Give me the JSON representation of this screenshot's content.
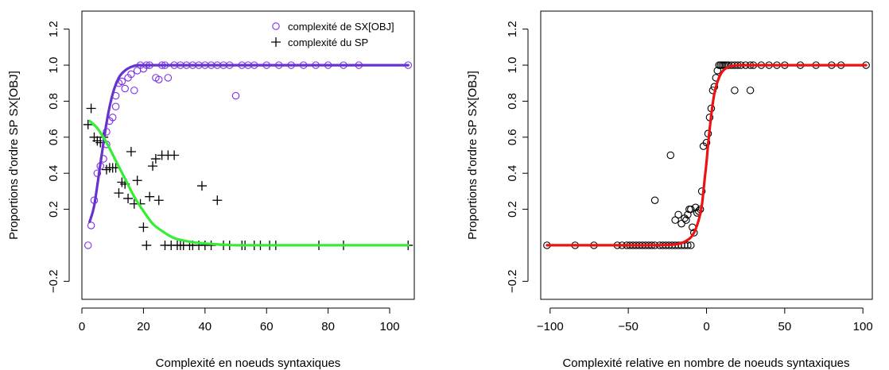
{
  "chart_data": [
    {
      "type": "scatter",
      "title": "",
      "xlabel": "Complexité en noeuds syntaxiques",
      "ylabel": "Proportions d'ordre SP SX[OBJ]",
      "xlim": [
        0,
        108
      ],
      "ylim": [
        -0.3,
        1.3
      ],
      "xticks": [
        0,
        20,
        40,
        60,
        80,
        100
      ],
      "yticks": [
        -0.2,
        0.2,
        0.4,
        0.6,
        0.8,
        1.0,
        1.2
      ],
      "ytick_labels": [
        "−0.2",
        "0.2",
        "0.4",
        "0.6",
        "0.8",
        "1.0",
        "1.2"
      ],
      "grid": false,
      "legend_position": "top-right",
      "legend": [
        "complexité de SX[OBJ]",
        "complexité du SP"
      ],
      "series": [
        {
          "name": "complexité de SX[OBJ]",
          "marker": "circle",
          "color": "#7b2fe8",
          "x": [
            2,
            3,
            4,
            5,
            6,
            7,
            8,
            8,
            9,
            10,
            11,
            11,
            12,
            13,
            14,
            15,
            16,
            17,
            18,
            19,
            20,
            21,
            22,
            24,
            25,
            26,
            27,
            28,
            30,
            32,
            34,
            36,
            38,
            40,
            42,
            44,
            46,
            48,
            50,
            52,
            54,
            56,
            60,
            64,
            68,
            72,
            76,
            80,
            85,
            90,
            106
          ],
          "y": [
            0.0,
            0.11,
            0.25,
            0.4,
            0.44,
            0.48,
            0.56,
            0.63,
            0.69,
            0.71,
            0.77,
            0.83,
            0.9,
            0.91,
            0.87,
            0.93,
            0.95,
            0.86,
            0.97,
            1.0,
            0.98,
            1.0,
            1.0,
            0.93,
            0.92,
            1.0,
            1.0,
            0.93,
            1.0,
            1.0,
            1.0,
            1.0,
            1.0,
            1.0,
            1.0,
            1.0,
            1.0,
            1.0,
            0.83,
            1.0,
            1.0,
            1.0,
            1.0,
            1.0,
            1.0,
            1.0,
            1.0,
            1.0,
            1.0,
            1.0,
            1.0
          ]
        },
        {
          "name": "complexité du SP",
          "marker": "plus",
          "color": "#000000",
          "x": [
            2,
            3,
            4,
            5,
            6,
            7,
            8,
            9,
            10,
            11,
            12,
            13,
            14,
            15,
            16,
            17,
            18,
            19,
            20,
            21,
            22,
            23,
            24,
            25,
            26,
            28,
            30,
            32,
            36,
            39,
            44,
            27,
            29,
            31,
            33,
            35,
            38,
            40,
            42,
            46,
            48,
            52,
            53,
            56,
            58,
            61,
            63,
            77,
            85,
            106
          ],
          "y": [
            0.67,
            0.76,
            0.6,
            0.58,
            0.57,
            0.6,
            0.42,
            0.43,
            0.43,
            0.43,
            0.29,
            0.35,
            0.34,
            0.26,
            0.52,
            0.23,
            0.36,
            0.23,
            0.1,
            0.0,
            0.27,
            0.44,
            0.48,
            0.25,
            0.5,
            0.5,
            0.5,
            0.0,
            0.0,
            0.33,
            0.25,
            0.0,
            0.0,
            0.0,
            0.0,
            0.0,
            0.0,
            0.0,
            0.0,
            0.0,
            0.0,
            0.0,
            0.0,
            0.0,
            0.0,
            0.0,
            0.0,
            0.0,
            0.0,
            0.0
          ]
        }
      ],
      "fitted_curves": [
        {
          "series": "complexité de SX[OBJ]",
          "color": "#6633cc",
          "model": "logistic",
          "x": [
            2.5,
            4,
            6,
            8,
            10,
            12,
            14,
            16,
            18,
            20,
            24,
            28,
            35,
            50,
            70,
            106
          ],
          "y": [
            0.13,
            0.22,
            0.45,
            0.68,
            0.84,
            0.93,
            0.97,
            0.99,
            1.0,
            1.0,
            1.0,
            1.0,
            1.0,
            1.0,
            1.0,
            1.0
          ]
        },
        {
          "series": "complexité du SP",
          "color": "#33ee33",
          "model": "logistic",
          "x": [
            2.5,
            5,
            8,
            11,
            14,
            17,
            20,
            23,
            26,
            30,
            35,
            40,
            50,
            60,
            80,
            106
          ],
          "y": [
            0.69,
            0.65,
            0.57,
            0.47,
            0.37,
            0.27,
            0.19,
            0.12,
            0.08,
            0.04,
            0.02,
            0.01,
            0.0,
            0.0,
            0.0,
            0.0
          ]
        }
      ]
    },
    {
      "type": "scatter",
      "title": "",
      "xlabel": "Complexité relative en nombre de noeuds syntaxiques",
      "ylabel": "Proportions d'ordre SP SX[OBJ]",
      "xlim": [
        -106,
        106
      ],
      "ylim": [
        -0.3,
        1.3
      ],
      "xticks": [
        -100,
        -50,
        0,
        50,
        100
      ],
      "xtick_labels": [
        "−100",
        "−50",
        "0",
        "50",
        "100"
      ],
      "yticks": [
        -0.2,
        0.2,
        0.4,
        0.6,
        0.8,
        1.0,
        1.2
      ],
      "ytick_labels": [
        "−0.2",
        "0.2",
        "0.4",
        "0.6",
        "0.8",
        "1.0",
        "1.2"
      ],
      "grid": false,
      "series": [
        {
          "marker": "circle",
          "color": "#000000",
          "x": [
            -102,
            -84,
            -72,
            -57,
            -54,
            -51,
            -49,
            -47,
            -45,
            -43,
            -41,
            -39,
            -37,
            -35,
            -33,
            -30,
            -28,
            -26,
            -24,
            -22,
            -20,
            -18,
            -16,
            -14,
            -12,
            -10,
            -23,
            -33,
            -20,
            -18,
            -16,
            -14,
            -13,
            -12,
            -11,
            -10,
            -9,
            -8,
            -7,
            -6,
            -5,
            -4,
            -3,
            -2,
            0,
            1,
            2,
            3,
            4,
            5,
            6,
            7,
            8,
            9,
            10,
            11,
            12,
            13,
            14,
            16,
            18,
            20,
            22,
            25,
            28,
            30,
            35,
            40,
            45,
            50,
            60,
            70,
            80,
            86,
            102,
            18,
            28
          ],
          "y": [
            0,
            0,
            0,
            0,
            0,
            0,
            0,
            0,
            0,
            0,
            0,
            0,
            0,
            0,
            0,
            0,
            0,
            0,
            0,
            0,
            0,
            0,
            0,
            0,
            0,
            0,
            0.5,
            0.25,
            0.14,
            0.17,
            0.12,
            0.15,
            0.14,
            0.17,
            0.2,
            0.2,
            0.1,
            0.07,
            0.21,
            0.18,
            0.19,
            0.2,
            0.3,
            0.55,
            0.57,
            0.62,
            0.71,
            0.76,
            0.86,
            0.88,
            0.93,
            0.97,
            1,
            1,
            1,
            1,
            1,
            1,
            1,
            1,
            1,
            1,
            1,
            1,
            1,
            1,
            1,
            1,
            1,
            1,
            1,
            1,
            1,
            1,
            1,
            0.86,
            0.86
          ]
        }
      ],
      "fitted_curves": [
        {
          "color": "#ee1111",
          "model": "logistic",
          "x": [
            -102,
            -40,
            -20,
            -12,
            -8,
            -5,
            -3,
            -1,
            0,
            1,
            3,
            5,
            8,
            12,
            20,
            40,
            102
          ],
          "y": [
            0,
            0,
            0.005,
            0.03,
            0.07,
            0.14,
            0.22,
            0.38,
            0.46,
            0.56,
            0.72,
            0.84,
            0.93,
            0.98,
            1.0,
            1.0,
            1.0
          ]
        }
      ]
    }
  ]
}
